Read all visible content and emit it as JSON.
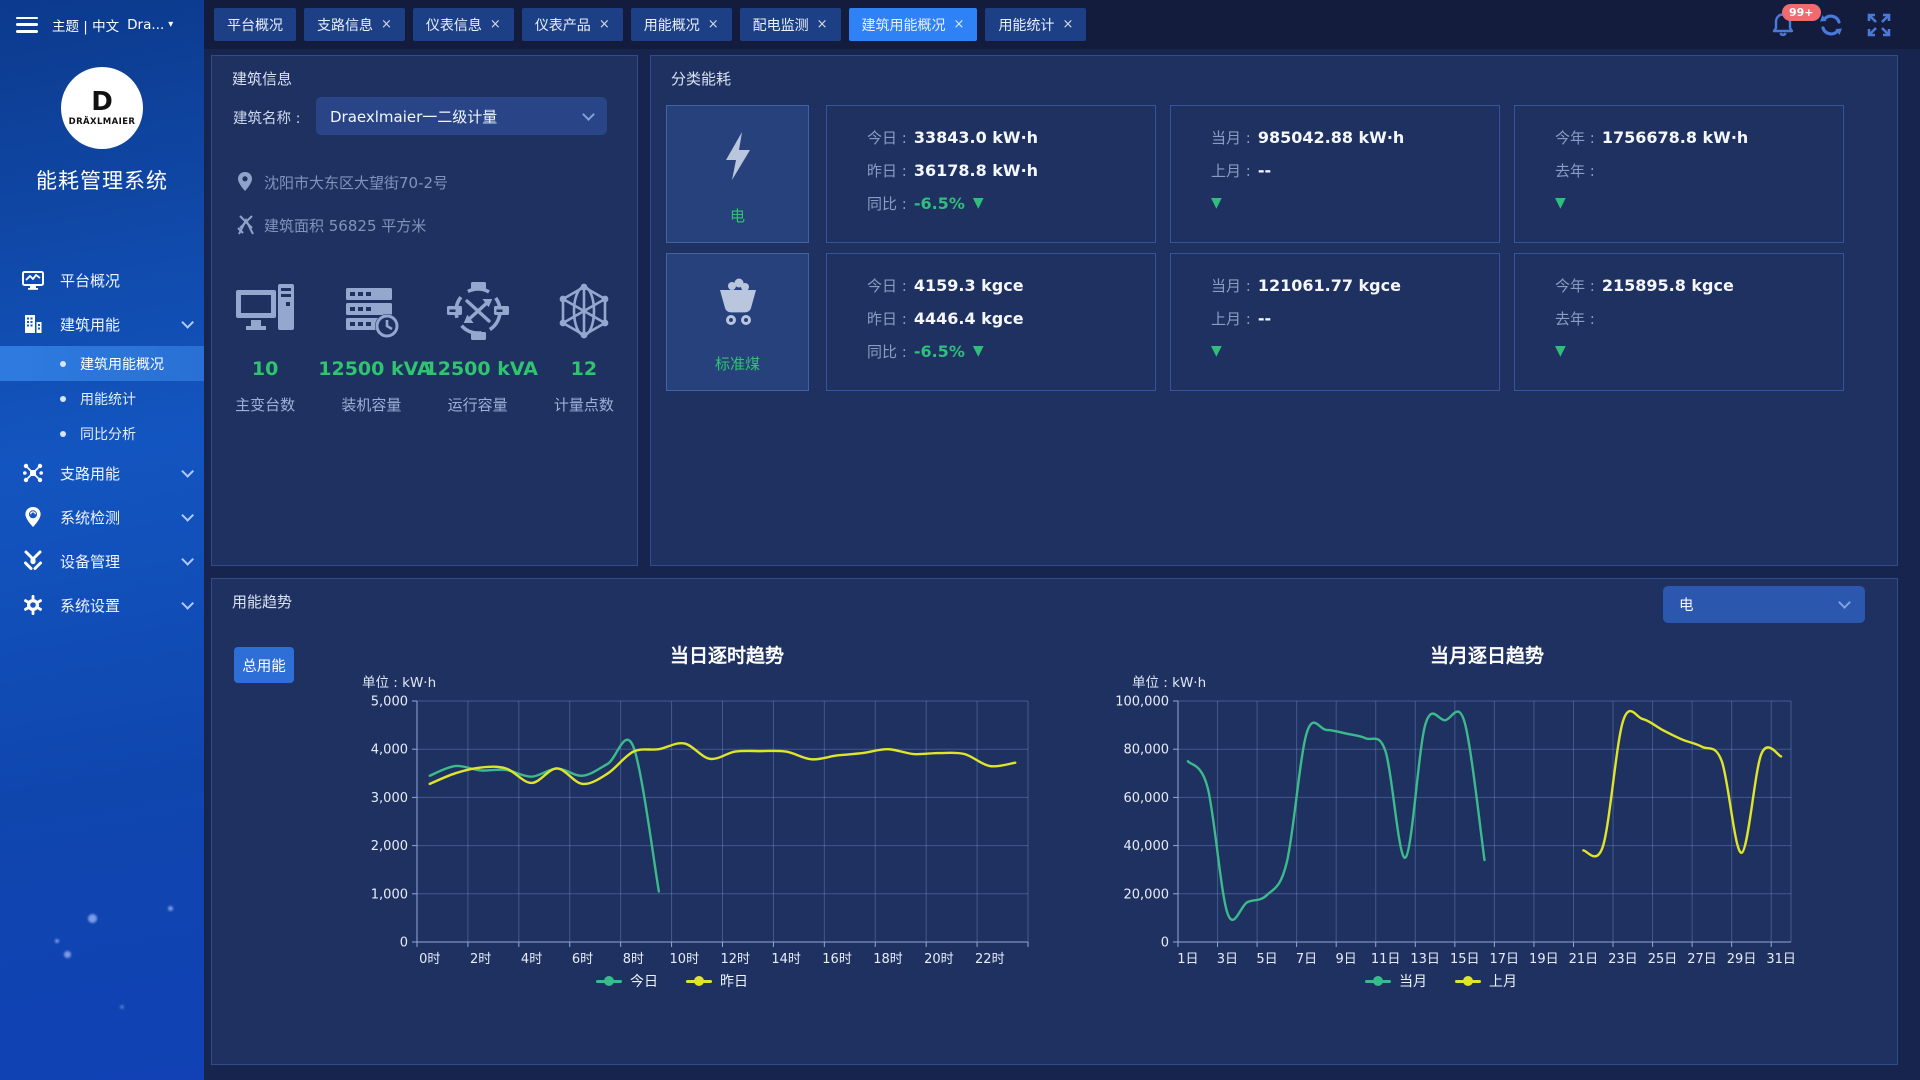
{
  "ui": {
    "close_char": "×",
    "down_arrow": "▼",
    "dropdown_caret": "▾"
  },
  "header": {
    "theme_label": "主题 | 中文",
    "user_label": "Dra...",
    "notification_badge": "99+"
  },
  "sidebar": {
    "logo_letter": "D",
    "logo_brand": "DRÄXLMAIER",
    "app_title": "能耗管理系统",
    "items": [
      {
        "label": "平台概况"
      },
      {
        "label": "建筑用能",
        "children": [
          {
            "label": "建筑用能概况"
          },
          {
            "label": "用能统计"
          },
          {
            "label": "同比分析"
          }
        ]
      },
      {
        "label": "支路用能"
      },
      {
        "label": "系统检测"
      },
      {
        "label": "设备管理"
      },
      {
        "label": "系统设置"
      }
    ]
  },
  "tabs": [
    {
      "label": "平台概况"
    },
    {
      "label": "支路信息"
    },
    {
      "label": "仪表信息"
    },
    {
      "label": "仪表产品"
    },
    {
      "label": "用能概况"
    },
    {
      "label": "配电监测"
    },
    {
      "label": "建筑用能概况"
    },
    {
      "label": "用能统计"
    }
  ],
  "building_info": {
    "title": "建筑信息",
    "name_label": "建筑名称 :",
    "name_value": "Draexlmaier一二级计量",
    "address": "沈阳市大东区大望街70-2号",
    "area_text": "建筑面积 56825 平方米",
    "stats": [
      {
        "value": "10",
        "label": "主变台数"
      },
      {
        "value": "12500 kVA",
        "label": "装机容量"
      },
      {
        "value": "12500 kVA",
        "label": "运行容量"
      },
      {
        "value": "12",
        "label": "计量点数"
      }
    ]
  },
  "category_energy": {
    "title": "分类能耗",
    "rows": [
      {
        "name": "电",
        "cards": [
          {
            "l1_label": "今日 :",
            "l1_value": "33843.0 kW·h",
            "l2_label": "昨日 :",
            "l2_value": "36178.8 kW·h",
            "l3_label": "同比 :",
            "l3_value": "-6.5%"
          },
          {
            "l1_label": "当月 :",
            "l1_value": "985042.88 kW·h",
            "l2_label": "上月 :",
            "l2_value": "--",
            "l3_label": "",
            "l3_value": ""
          },
          {
            "l1_label": "今年 :",
            "l1_value": "1756678.8 kW·h",
            "l2_label": "去年 :",
            "l2_value": "",
            "l3_label": "",
            "l3_value": ""
          }
        ]
      },
      {
        "name": "标准煤",
        "cards": [
          {
            "l1_label": "今日 :",
            "l1_value": "4159.3 kgce",
            "l2_label": "昨日 :",
            "l2_value": "4446.4 kgce",
            "l3_label": "同比 :",
            "l3_value": "-6.5%"
          },
          {
            "l1_label": "当月 :",
            "l1_value": "121061.77 kgce",
            "l2_label": "上月 :",
            "l2_value": "--",
            "l3_label": "",
            "l3_value": ""
          },
          {
            "l1_label": "今年 :",
            "l1_value": "215895.8 kgce",
            "l2_label": "去年 :",
            "l2_value": "",
            "l3_label": "",
            "l3_value": ""
          }
        ]
      }
    ]
  },
  "trend": {
    "title": "用能趋势",
    "button_label": "总用能",
    "selector_value": "电"
  },
  "chart_data": [
    {
      "type": "line",
      "title": "当日逐时趋势",
      "unit_label": "单位 : kW·h",
      "categories": [
        "0时",
        "1时",
        "2时",
        "3时",
        "4时",
        "5时",
        "6时",
        "7时",
        "8时",
        "9时",
        "10时",
        "11时",
        "12时",
        "13时",
        "14时",
        "15时",
        "16时",
        "17时",
        "18时",
        "19时",
        "20时",
        "21时",
        "22时",
        "23时"
      ],
      "label_every": 2,
      "ylim": [
        0,
        5000
      ],
      "yticks": [
        0,
        1000,
        2000,
        3000,
        4000,
        5000
      ],
      "grid": true,
      "legend_position": "bottom",
      "series": [
        {
          "name": "今日",
          "color": "#3cba8b",
          "values": [
            3450,
            3650,
            3560,
            3570,
            3430,
            3600,
            3450,
            3700,
            4050,
            1050,
            null,
            null,
            null,
            null,
            null,
            null,
            null,
            null,
            null,
            null,
            null,
            null,
            null,
            null
          ]
        },
        {
          "name": "昨日",
          "color": "#e0e42a",
          "values": [
            3280,
            3500,
            3620,
            3600,
            3300,
            3600,
            3280,
            3500,
            3950,
            4000,
            4120,
            3800,
            3950,
            3960,
            3950,
            3790,
            3870,
            3920,
            4000,
            3900,
            3920,
            3900,
            3650,
            3720
          ]
        }
      ]
    },
    {
      "type": "line",
      "title": "当月逐日趋势",
      "unit_label": "单位 : kW·h",
      "categories": [
        "1日",
        "2日",
        "3日",
        "4日",
        "5日",
        "6日",
        "7日",
        "8日",
        "9日",
        "10日",
        "11日",
        "12日",
        "13日",
        "14日",
        "15日",
        "16日",
        "17日",
        "18日",
        "19日",
        "20日",
        "21日",
        "22日",
        "23日",
        "24日",
        "25日",
        "26日",
        "27日",
        "28日",
        "29日",
        "30日",
        "31日"
      ],
      "label_every": 2,
      "ylim": [
        0,
        100000
      ],
      "yticks": [
        0,
        20000,
        40000,
        60000,
        80000,
        100000
      ],
      "grid": true,
      "legend_position": "bottom",
      "series": [
        {
          "name": "当月",
          "color": "#3cba8b",
          "values": [
            75000,
            64000,
            12000,
            16500,
            19500,
            33000,
            86500,
            88000,
            86500,
            84500,
            79000,
            35000,
            90000,
            92000,
            91000,
            34000,
            null,
            null,
            null,
            null,
            null,
            null,
            null,
            null,
            null,
            null,
            null,
            null,
            null,
            null,
            null
          ]
        },
        {
          "name": "上月",
          "color": "#e0e42a",
          "values": [
            null,
            null,
            null,
            null,
            null,
            null,
            null,
            null,
            null,
            null,
            null,
            null,
            null,
            null,
            null,
            null,
            null,
            null,
            null,
            null,
            38000,
            40000,
            91500,
            92500,
            88000,
            84000,
            81000,
            75000,
            37000,
            78000,
            77000
          ]
        }
      ]
    }
  ]
}
